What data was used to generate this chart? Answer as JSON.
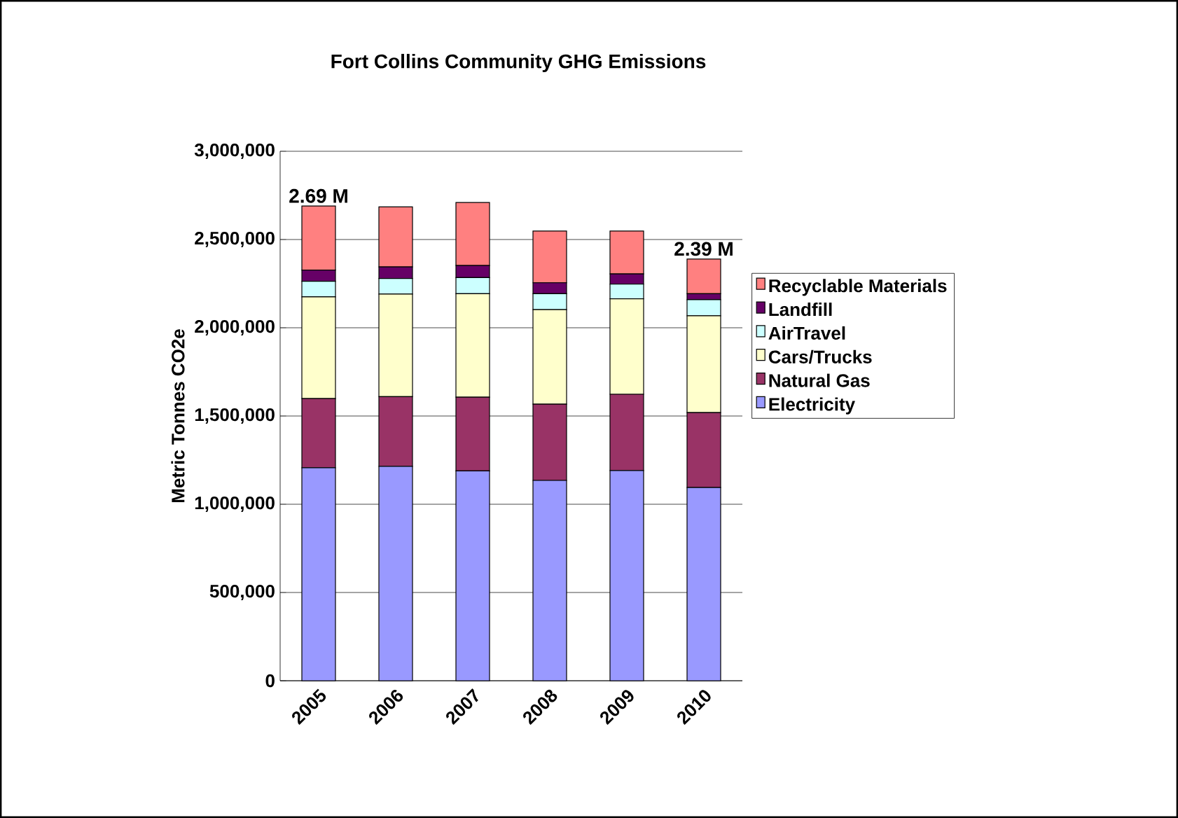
{
  "chart_data": {
    "type": "bar",
    "stacked": true,
    "title": "Fort Collins Community GHG Emissions",
    "ylabel": "Metric Tonnes CO2e",
    "categories": [
      "2005",
      "2006",
      "2007",
      "2008",
      "2009",
      "2010"
    ],
    "series": [
      {
        "name": "Electricity",
        "color": "#9999ff",
        "values": [
          1207000,
          1215000,
          1189000,
          1135000,
          1191000,
          1095000
        ]
      },
      {
        "name": "Natural Gas",
        "color": "#993366",
        "values": [
          392000,
          395000,
          418000,
          432000,
          432000,
          424000
        ]
      },
      {
        "name": "Cars/Trucks",
        "color": "#ffffcc",
        "values": [
          576000,
          581000,
          586000,
          536000,
          541000,
          549000
        ]
      },
      {
        "name": "AirTravel",
        "color": "#ccffff",
        "values": [
          88000,
          88000,
          91000,
          90000,
          83000,
          91000
        ]
      },
      {
        "name": "Landfill",
        "color": "#660066",
        "values": [
          64000,
          66000,
          69000,
          62000,
          58000,
          34000
        ]
      },
      {
        "name": "Recyclable Materials",
        "color": "#ff8080",
        "values": [
          363000,
          340000,
          357000,
          293000,
          243000,
          196000
        ]
      }
    ],
    "ylim": [
      0,
      3000000
    ],
    "yticks": [
      {
        "value": 0,
        "label": "0"
      },
      {
        "value": 500000,
        "label": "500,000"
      },
      {
        "value": 1000000,
        "label": "1,000,000"
      },
      {
        "value": 1500000,
        "label": "1,500,000"
      },
      {
        "value": 2000000,
        "label": "2,000,000"
      },
      {
        "value": 2500000,
        "label": "2,500,000"
      },
      {
        "value": 3000000,
        "label": "3,000,000"
      }
    ],
    "annotations": [
      {
        "text": "2.69 M",
        "x": "2005",
        "y": 2690000
      },
      {
        "text": "2.39 M",
        "x": "2010",
        "y": 2390000
      }
    ],
    "grid": "y",
    "legend": "right"
  }
}
